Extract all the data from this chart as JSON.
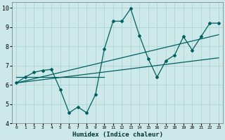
{
  "xlabel": "Humidex (Indice chaleur)",
  "ylabel": "",
  "bg_color": "#cce8e8",
  "grid_color": "#aed4d4",
  "line_color": "#006060",
  "xlim": [
    -0.5,
    23.5
  ],
  "ylim": [
    4,
    10.3
  ],
  "xticks": [
    0,
    1,
    2,
    3,
    4,
    5,
    6,
    7,
    8,
    9,
    10,
    11,
    12,
    13,
    14,
    15,
    16,
    17,
    18,
    19,
    20,
    21,
    22,
    23
  ],
  "yticks": [
    4,
    5,
    6,
    7,
    8,
    9,
    10
  ],
  "scatter_x": [
    0,
    1,
    2,
    3,
    4,
    5,
    6,
    7,
    8,
    9,
    10,
    11,
    12,
    13,
    14,
    15,
    16,
    17,
    18,
    19,
    20,
    21,
    22,
    23
  ],
  "scatter_y": [
    6.1,
    6.4,
    6.65,
    6.75,
    6.8,
    5.75,
    4.55,
    4.85,
    4.55,
    5.5,
    7.85,
    9.3,
    9.3,
    9.95,
    8.55,
    7.35,
    6.4,
    7.25,
    7.55,
    8.5,
    7.8,
    8.5,
    9.2,
    9.2
  ],
  "trend1_x": [
    0,
    23
  ],
  "trend1_y": [
    6.1,
    8.6
  ],
  "trend2_x": [
    0,
    23
  ],
  "trend2_y": [
    6.1,
    7.4
  ],
  "line2_x": [
    0,
    10
  ],
  "line2_y": [
    6.4,
    6.4
  ]
}
